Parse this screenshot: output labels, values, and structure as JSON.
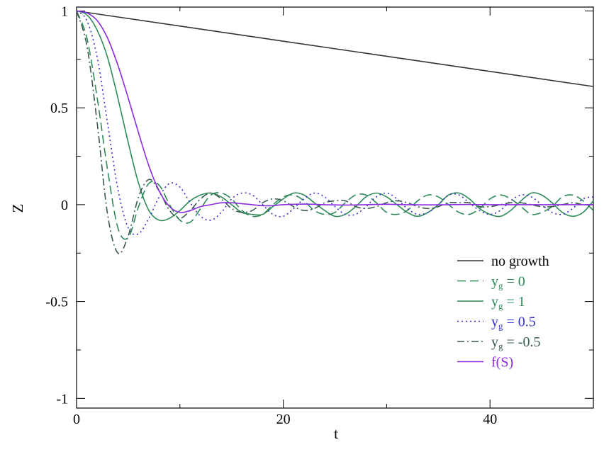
{
  "chart_data": {
    "type": "line",
    "title": "",
    "xlabel": "t",
    "ylabel": "Z",
    "xlim": [
      0,
      50
    ],
    "ylim": [
      -1.05,
      1.02
    ],
    "xticks": [
      {
        "v": 0,
        "label": "0"
      },
      {
        "v": 20,
        "label": "20"
      },
      {
        "v": 40,
        "label": "40"
      }
    ],
    "xminor": [
      10,
      30,
      50
    ],
    "yticks": [
      {
        "v": 1,
        "label": "1"
      },
      {
        "v": 0.5,
        "label": "0.5"
      },
      {
        "v": 0,
        "label": "0"
      },
      {
        "v": -0.5,
        "label": "-0.5"
      },
      {
        "v": -1,
        "label": "-1"
      }
    ],
    "grid": false,
    "legend_position": "right",
    "series": [
      {
        "name": "no growth",
        "legend_main": "no growth",
        "legend_sub": "",
        "legend_rest": "",
        "color": "#333333",
        "dash": "solid",
        "x": [
          0,
          50
        ],
        "y": [
          1.0,
          0.61
        ]
      },
      {
        "name": "y_g = 0",
        "legend_main": "y",
        "legend_sub": "g",
        "legend_rest": " = 0",
        "color": "#2e8b57",
        "dash": "long-dash",
        "x": [
          0,
          1,
          2,
          3,
          4,
          5,
          6,
          7,
          8,
          9,
          10,
          11,
          12,
          13,
          14,
          15,
          16,
          17,
          18,
          19,
          20,
          21,
          22,
          23,
          24,
          25,
          26,
          27,
          28,
          29,
          30,
          31,
          32,
          33,
          34,
          35,
          36,
          37,
          38,
          39,
          40,
          41,
          42,
          43,
          44,
          45,
          46,
          47,
          48,
          49,
          50
        ],
        "y": [
          1.0,
          0.86,
          0.55,
          0.18,
          -0.12,
          -0.17,
          -0.01,
          0.11,
          0.1,
          0.0,
          -0.08,
          -0.09,
          -0.02,
          0.05,
          0.06,
          0.03,
          -0.03,
          -0.06,
          -0.05,
          0.0,
          0.04,
          0.05,
          0.02,
          -0.03,
          -0.05,
          -0.04,
          0.01,
          0.05,
          0.05,
          0.01,
          -0.04,
          -0.05,
          -0.03,
          0.02,
          0.05,
          0.04,
          0.0,
          -0.04,
          -0.05,
          -0.02,
          0.03,
          0.05,
          0.03,
          -0.01,
          -0.05,
          -0.04,
          -0.01,
          0.04,
          0.05,
          0.02,
          -0.03
        ]
      },
      {
        "name": "y_g = 1",
        "legend_main": "y",
        "legend_sub": "g",
        "legend_rest": " = 1",
        "color": "#2e8b57",
        "dash": "solid",
        "x": [
          0,
          1,
          2,
          3,
          4,
          5,
          6,
          7,
          8,
          9,
          10,
          11,
          12,
          13,
          14,
          15,
          16,
          17,
          18,
          19,
          20,
          21,
          22,
          23,
          24,
          25,
          26,
          27,
          28,
          29,
          30,
          31,
          32,
          33,
          34,
          35,
          36,
          37,
          38,
          39,
          40,
          41,
          42,
          43,
          44,
          45,
          46,
          47,
          48,
          49,
          50
        ],
        "y": [
          1.0,
          0.98,
          0.9,
          0.76,
          0.55,
          0.32,
          0.11,
          -0.03,
          -0.08,
          -0.07,
          -0.03,
          0.02,
          0.05,
          0.06,
          0.04,
          0.0,
          -0.04,
          -0.05,
          -0.05,
          -0.01,
          0.03,
          0.06,
          0.05,
          0.01,
          -0.03,
          -0.06,
          -0.05,
          -0.01,
          0.04,
          0.06,
          0.04,
          0.0,
          -0.04,
          -0.06,
          -0.04,
          0.0,
          0.05,
          0.06,
          0.03,
          -0.02,
          -0.05,
          -0.06,
          -0.03,
          0.02,
          0.06,
          0.05,
          0.01,
          -0.04,
          -0.06,
          -0.04,
          0.02
        ]
      },
      {
        "name": "y_g = 0.5",
        "legend_main": "y",
        "legend_sub": "g",
        "legend_rest": " = 0.5",
        "color": "#3333cc",
        "dash": "dotted",
        "x": [
          0,
          1,
          2,
          3,
          4,
          5,
          6,
          7,
          8,
          9,
          10,
          11,
          12,
          13,
          14,
          15,
          16,
          17,
          18,
          19,
          20,
          21,
          22,
          23,
          24,
          25,
          26,
          27,
          28,
          29,
          30,
          31,
          32,
          33,
          34,
          35,
          36,
          37,
          38,
          39,
          40,
          41,
          42,
          43,
          44,
          45,
          46,
          47,
          48,
          49,
          50
        ],
        "y": [
          1.0,
          0.95,
          0.76,
          0.42,
          0.08,
          -0.12,
          -0.15,
          -0.07,
          0.04,
          0.11,
          0.09,
          0.01,
          -0.06,
          -0.08,
          -0.04,
          0.03,
          0.06,
          0.05,
          0.0,
          -0.05,
          -0.06,
          -0.02,
          0.03,
          0.06,
          0.04,
          -0.01,
          -0.05,
          -0.05,
          -0.01,
          0.04,
          0.06,
          0.03,
          -0.02,
          -0.05,
          -0.04,
          0.0,
          0.05,
          0.05,
          0.01,
          -0.03,
          -0.05,
          -0.03,
          0.02,
          0.05,
          0.04,
          0.0,
          -0.04,
          -0.05,
          -0.02,
          0.03,
          0.04
        ]
      },
      {
        "name": "y_g = -0.5",
        "legend_main": "y",
        "legend_sub": "g",
        "legend_rest": " = -0.5",
        "color": "#3a5a50",
        "dash": "dash-dot",
        "x": [
          0,
          1,
          2,
          3,
          4,
          5,
          6,
          7,
          8,
          9,
          10,
          11,
          12,
          13,
          14,
          15,
          16,
          17,
          18,
          19,
          20,
          21,
          22,
          23,
          24,
          25,
          26,
          27,
          28,
          29,
          30,
          31,
          32,
          33,
          34,
          35,
          36,
          37,
          38,
          39,
          40,
          41,
          42,
          43,
          44,
          45,
          46,
          47,
          48,
          49,
          50
        ],
        "y": [
          1.0,
          0.82,
          0.42,
          -0.05,
          -0.25,
          -0.16,
          0.04,
          0.13,
          0.07,
          -0.03,
          -0.07,
          -0.03,
          0.03,
          0.06,
          0.03,
          -0.02,
          -0.04,
          -0.03,
          0.01,
          0.03,
          0.02,
          -0.01,
          -0.03,
          -0.02,
          0.01,
          0.02,
          0.02,
          -0.01,
          -0.02,
          -0.01,
          0.01,
          0.02,
          0.01,
          -0.01,
          -0.02,
          -0.01,
          0.01,
          0.01,
          0.01,
          -0.01,
          -0.01,
          0.0,
          0.01,
          0.01,
          0.0,
          -0.01,
          -0.01,
          0.0,
          0.01,
          0.0,
          0.0
        ]
      },
      {
        "name": "f(S)",
        "legend_main": "f(S)",
        "legend_sub": "",
        "legend_rest": "",
        "color": "#8a2be2",
        "dash": "solid",
        "x": [
          0,
          1,
          2,
          3,
          4,
          5,
          6,
          7,
          8,
          9,
          10,
          11,
          12,
          13,
          14,
          15,
          16,
          17,
          18,
          19,
          20,
          22,
          24,
          26,
          28,
          30,
          32,
          34,
          36,
          38,
          40,
          42,
          44,
          46,
          48,
          50
        ],
        "y": [
          1.0,
          0.99,
          0.95,
          0.86,
          0.72,
          0.55,
          0.37,
          0.2,
          0.07,
          -0.01,
          -0.04,
          -0.03,
          -0.01,
          0.0,
          0.01,
          0.01,
          0.005,
          0.0,
          -0.005,
          -0.005,
          0.0,
          0.003,
          0.0,
          -0.002,
          0.0,
          0.002,
          0.0,
          -0.001,
          0.0,
          0.001,
          0.0,
          0.0,
          0.0,
          0.0,
          0.0,
          0.0
        ]
      }
    ]
  }
}
